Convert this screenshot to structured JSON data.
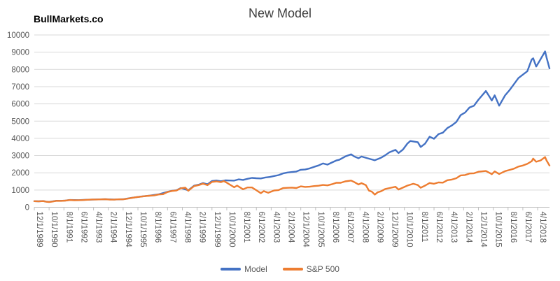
{
  "brand": "BullMarkets.co",
  "chart_data": {
    "type": "line",
    "title": "New Model",
    "xlabel": "",
    "ylabel": "",
    "ylim": [
      0,
      10000
    ],
    "y_ticks": [
      0,
      1000,
      2000,
      3000,
      4000,
      5000,
      6000,
      7000,
      8000,
      9000,
      10000
    ],
    "grid": "horizontal",
    "legend_position": "bottom",
    "x_tick_interval_months": 10,
    "x_tick_labels": [
      "12/1/1989",
      "10/1/1990",
      "8/1/1991",
      "6/1/1992",
      "4/1/1993",
      "2/1/1994",
      "12/1/1994",
      "10/1/1995",
      "8/1/1996",
      "6/1/1997",
      "4/1/1998",
      "2/1/1999",
      "12/1/1999",
      "10/1/2000",
      "8/1/2001",
      "6/1/2002",
      "4/1/2003",
      "2/1/2004",
      "12/1/2004",
      "10/1/2005",
      "8/1/2006",
      "6/1/2007",
      "4/1/2008",
      "2/1/2009",
      "12/1/2009",
      "10/1/2010",
      "8/1/2011",
      "6/1/2012",
      "4/1/2013",
      "2/1/2014",
      "12/1/2014",
      "10/1/2015",
      "8/1/2016",
      "6/1/2017",
      "4/1/2018"
    ],
    "series": [
      {
        "name": "Model",
        "color": "#4472C4",
        "points": [
          [
            "1989-12",
            353
          ],
          [
            "1990-03",
            345
          ],
          [
            "1990-06",
            362
          ],
          [
            "1990-08",
            330
          ],
          [
            "1990-10",
            312
          ],
          [
            "1990-12",
            336
          ],
          [
            "1991-03",
            378
          ],
          [
            "1991-06",
            374
          ],
          [
            "1991-09",
            390
          ],
          [
            "1991-12",
            420
          ],
          [
            "1992-06",
            412
          ],
          [
            "1992-12",
            440
          ],
          [
            "1993-06",
            455
          ],
          [
            "1993-12",
            470
          ],
          [
            "1994-06",
            450
          ],
          [
            "1994-12",
            466
          ],
          [
            "1995-06",
            550
          ],
          [
            "1995-12",
            622
          ],
          [
            "1996-06",
            678
          ],
          [
            "1996-12",
            750
          ],
          [
            "1997-06",
            895
          ],
          [
            "1997-09",
            958
          ],
          [
            "1997-12",
            985
          ],
          [
            "1998-03",
            1115
          ],
          [
            "1998-08",
            985
          ],
          [
            "1998-12",
            1255
          ],
          [
            "1999-03",
            1310
          ],
          [
            "1999-06",
            1405
          ],
          [
            "1999-09",
            1330
          ],
          [
            "1999-12",
            1520
          ],
          [
            "2000-03",
            1555
          ],
          [
            "2000-06",
            1510
          ],
          [
            "2000-09",
            1560
          ],
          [
            "2000-12",
            1555
          ],
          [
            "2001-03",
            1545
          ],
          [
            "2001-06",
            1620
          ],
          [
            "2001-09",
            1585
          ],
          [
            "2001-12",
            1650
          ],
          [
            "2002-03",
            1705
          ],
          [
            "2002-06",
            1685
          ],
          [
            "2002-09",
            1670
          ],
          [
            "2002-12",
            1730
          ],
          [
            "2003-03",
            1755
          ],
          [
            "2003-06",
            1815
          ],
          [
            "2003-09",
            1865
          ],
          [
            "2003-12",
            1965
          ],
          [
            "2004-03",
            2015
          ],
          [
            "2004-06",
            2045
          ],
          [
            "2004-09",
            2075
          ],
          [
            "2004-12",
            2175
          ],
          [
            "2005-03",
            2195
          ],
          [
            "2005-06",
            2255
          ],
          [
            "2005-09",
            2345
          ],
          [
            "2005-12",
            2425
          ],
          [
            "2006-03",
            2545
          ],
          [
            "2006-06",
            2475
          ],
          [
            "2006-09",
            2595
          ],
          [
            "2006-12",
            2715
          ],
          [
            "2007-02",
            2755
          ],
          [
            "2007-06",
            2945
          ],
          [
            "2007-10",
            3075
          ],
          [
            "2007-12",
            2955
          ],
          [
            "2008-03",
            2845
          ],
          [
            "2008-05",
            2945
          ],
          [
            "2008-09",
            2845
          ],
          [
            "2008-12",
            2775
          ],
          [
            "2009-02",
            2725
          ],
          [
            "2009-06",
            2865
          ],
          [
            "2009-09",
            3015
          ],
          [
            "2009-12",
            3195
          ],
          [
            "2010-04",
            3330
          ],
          [
            "2010-06",
            3150
          ],
          [
            "2010-09",
            3345
          ],
          [
            "2010-12",
            3695
          ],
          [
            "2011-02",
            3845
          ],
          [
            "2011-07",
            3775
          ],
          [
            "2011-09",
            3495
          ],
          [
            "2011-12",
            3695
          ],
          [
            "2012-03",
            4095
          ],
          [
            "2012-06",
            3975
          ],
          [
            "2012-09",
            4245
          ],
          [
            "2012-12",
            4330
          ],
          [
            "2013-03",
            4595
          ],
          [
            "2013-06",
            4745
          ],
          [
            "2013-09",
            4945
          ],
          [
            "2013-12",
            5345
          ],
          [
            "2014-03",
            5495
          ],
          [
            "2014-06",
            5795
          ],
          [
            "2014-09",
            5895
          ],
          [
            "2014-12",
            6245
          ],
          [
            "2015-05",
            6745
          ],
          [
            "2015-08",
            6345
          ],
          [
            "2015-09",
            6195
          ],
          [
            "2015-11",
            6495
          ],
          [
            "2016-02",
            5895
          ],
          [
            "2016-06",
            6495
          ],
          [
            "2016-09",
            6795
          ],
          [
            "2016-12",
            7145
          ],
          [
            "2017-03",
            7495
          ],
          [
            "2017-06",
            7695
          ],
          [
            "2017-09",
            7895
          ],
          [
            "2017-12",
            8575
          ],
          [
            "2018-01",
            8645
          ],
          [
            "2018-03",
            8165
          ],
          [
            "2018-06",
            8595
          ],
          [
            "2018-09",
            9045
          ],
          [
            "2018-10",
            8690
          ],
          [
            "2018-12",
            8060
          ]
        ]
      },
      {
        "name": "S&P 500",
        "color": "#ED7D31",
        "points": [
          [
            "1989-12",
            353
          ],
          [
            "1990-03",
            340
          ],
          [
            "1990-06",
            358
          ],
          [
            "1990-08",
            322
          ],
          [
            "1990-10",
            304
          ],
          [
            "1990-12",
            330
          ],
          [
            "1991-03",
            375
          ],
          [
            "1991-06",
            371
          ],
          [
            "1991-09",
            387
          ],
          [
            "1991-12",
            417
          ],
          [
            "1992-03",
            404
          ],
          [
            "1992-06",
            408
          ],
          [
            "1992-09",
            418
          ],
          [
            "1992-12",
            436
          ],
          [
            "1993-03",
            452
          ],
          [
            "1993-06",
            451
          ],
          [
            "1993-09",
            459
          ],
          [
            "1993-12",
            466
          ],
          [
            "1994-03",
            446
          ],
          [
            "1994-06",
            444
          ],
          [
            "1994-09",
            462
          ],
          [
            "1994-12",
            459
          ],
          [
            "1995-03",
            501
          ],
          [
            "1995-06",
            545
          ],
          [
            "1995-09",
            584
          ],
          [
            "1995-12",
            616
          ],
          [
            "1996-03",
            646
          ],
          [
            "1996-06",
            671
          ],
          [
            "1996-09",
            687
          ],
          [
            "1996-12",
            741
          ],
          [
            "1997-03",
            757
          ],
          [
            "1997-06",
            885
          ],
          [
            "1997-09",
            947
          ],
          [
            "1997-12",
            970
          ],
          [
            "1998-03",
            1102
          ],
          [
            "1998-06",
            1134
          ],
          [
            "1998-08",
            957
          ],
          [
            "1998-10",
            1099
          ],
          [
            "1998-12",
            1229
          ],
          [
            "1999-03",
            1286
          ],
          [
            "1999-06",
            1373
          ],
          [
            "1999-09",
            1283
          ],
          [
            "1999-12",
            1469
          ],
          [
            "2000-03",
            1499
          ],
          [
            "2000-06",
            1455
          ],
          [
            "2000-08",
            1518
          ],
          [
            "2000-10",
            1429
          ],
          [
            "2000-12",
            1320
          ],
          [
            "2001-03",
            1160
          ],
          [
            "2001-05",
            1256
          ],
          [
            "2001-09",
            1041
          ],
          [
            "2001-12",
            1148
          ],
          [
            "2002-03",
            1147
          ],
          [
            "2002-06",
            990
          ],
          [
            "2002-09",
            815
          ],
          [
            "2002-11",
            936
          ],
          [
            "2003-02",
            841
          ],
          [
            "2003-06",
            975
          ],
          [
            "2003-09",
            996
          ],
          [
            "2003-12",
            1112
          ],
          [
            "2004-03",
            1126
          ],
          [
            "2004-06",
            1141
          ],
          [
            "2004-09",
            1115
          ],
          [
            "2004-12",
            1212
          ],
          [
            "2005-03",
            1181
          ],
          [
            "2005-06",
            1191
          ],
          [
            "2005-09",
            1229
          ],
          [
            "2005-12",
            1248
          ],
          [
            "2006-03",
            1295
          ],
          [
            "2006-06",
            1270
          ],
          [
            "2006-09",
            1336
          ],
          [
            "2006-12",
            1418
          ],
          [
            "2007-03",
            1421
          ],
          [
            "2007-06",
            1503
          ],
          [
            "2007-10",
            1549
          ],
          [
            "2007-12",
            1468
          ],
          [
            "2008-03",
            1323
          ],
          [
            "2008-05",
            1400
          ],
          [
            "2008-08",
            1283
          ],
          [
            "2008-10",
            969
          ],
          [
            "2008-12",
            903
          ],
          [
            "2009-02",
            735
          ],
          [
            "2009-04",
            873
          ],
          [
            "2009-06",
            919
          ],
          [
            "2009-09",
            1057
          ],
          [
            "2009-12",
            1115
          ],
          [
            "2010-04",
            1187
          ],
          [
            "2010-06",
            1031
          ],
          [
            "2010-09",
            1141
          ],
          [
            "2010-12",
            1258
          ],
          [
            "2011-04",
            1364
          ],
          [
            "2011-07",
            1292
          ],
          [
            "2011-09",
            1131
          ],
          [
            "2011-12",
            1258
          ],
          [
            "2012-03",
            1408
          ],
          [
            "2012-06",
            1362
          ],
          [
            "2012-09",
            1441
          ],
          [
            "2012-12",
            1426
          ],
          [
            "2013-03",
            1569
          ],
          [
            "2013-06",
            1606
          ],
          [
            "2013-09",
            1682
          ],
          [
            "2013-12",
            1848
          ],
          [
            "2014-03",
            1872
          ],
          [
            "2014-06",
            1960
          ],
          [
            "2014-09",
            1972
          ],
          [
            "2014-12",
            2059
          ],
          [
            "2015-05",
            2107
          ],
          [
            "2015-08",
            1972
          ],
          [
            "2015-09",
            1920
          ],
          [
            "2015-11",
            2080
          ],
          [
            "2016-02",
            1932
          ],
          [
            "2016-06",
            2099
          ],
          [
            "2016-09",
            2168
          ],
          [
            "2016-12",
            2239
          ],
          [
            "2017-03",
            2363
          ],
          [
            "2017-06",
            2423
          ],
          [
            "2017-09",
            2519
          ],
          [
            "2017-12",
            2674
          ],
          [
            "2018-01",
            2824
          ],
          [
            "2018-03",
            2641
          ],
          [
            "2018-06",
            2718
          ],
          [
            "2018-09",
            2914
          ],
          [
            "2018-10",
            2712
          ],
          [
            "2018-12",
            2420
          ]
        ]
      }
    ],
    "colors": {
      "gridline": "#D9D9D9",
      "axis_line": "#BFBFBF",
      "tick_label": "#595959",
      "title": "#404040"
    }
  }
}
